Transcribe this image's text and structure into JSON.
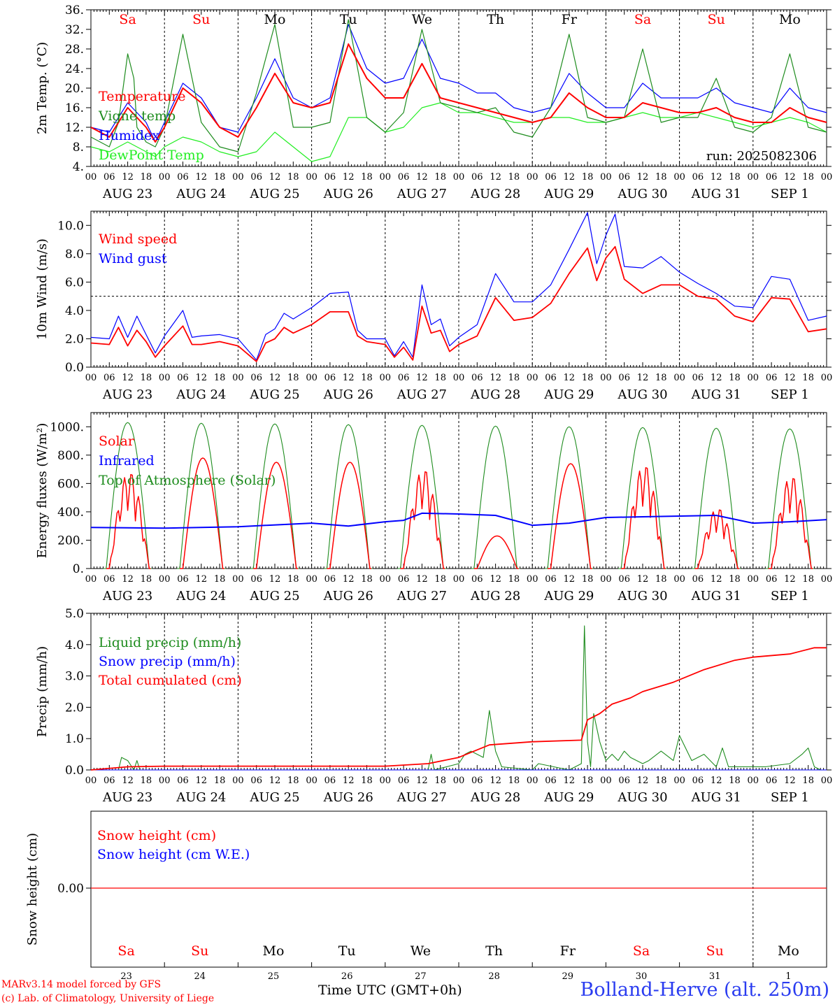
{
  "footer": {
    "credit_line1": "MARv3.14 model forced by GFS",
    "credit_line2": "(c) Lab. of Climatology, University of Liege",
    "time_label": "Time UTC (GMT+0h)",
    "station": "Bolland-Herve (alt. 250m)"
  },
  "axis_common": {
    "hour_ticks": [
      "00",
      "06",
      "12",
      "18"
    ],
    "dates": [
      "AUG 23",
      "AUG 24",
      "AUG 25",
      "AUG 26",
      "AUG 27",
      "AUG 28",
      "AUG 29",
      "AUG 30",
      "AUG 31",
      "SEP  1"
    ],
    "weekdays": [
      "Sa",
      "Su",
      "Mo",
      "Tu",
      "We",
      "Th",
      "Fr",
      "Sa",
      "Su",
      "Mo"
    ],
    "weekday_colors": [
      "#ff0000",
      "#ff0000",
      "#000000",
      "#000000",
      "#000000",
      "#000000",
      "#000000",
      "#ff0000",
      "#ff0000",
      "#000000"
    ],
    "day_numbers": [
      "23",
      "24",
      "25",
      "26",
      "27",
      "28",
      "29",
      "30",
      "31",
      "1"
    ]
  },
  "chart_data": [
    {
      "type": "line",
      "ylabel": "2m Temp. (°C)",
      "ylim": [
        4,
        36
      ],
      "yticks": [
        "4.",
        "8.",
        "12.",
        "16.",
        "20.",
        "24.",
        "28.",
        "32.",
        "36."
      ],
      "annotation": "run: 2025082306",
      "x_unit": "hours since AUG 23 00 UTC",
      "series": [
        {
          "name": "Temperature",
          "color": "#ff0000",
          "x": [
            0,
            6,
            9,
            12,
            15,
            18,
            21,
            24,
            30,
            36,
            42,
            48,
            54,
            60,
            66,
            72,
            78,
            84,
            90,
            96,
            102,
            108,
            114,
            120,
            126,
            132,
            138,
            144,
            150,
            156,
            162,
            168,
            174,
            180,
            186,
            192,
            198,
            204,
            210,
            216,
            222,
            228,
            234,
            240
          ],
          "values": [
            12,
            10,
            13,
            16,
            14,
            12,
            9,
            12,
            20,
            17,
            12,
            10,
            16,
            23,
            17,
            16,
            17,
            29,
            22,
            18,
            18,
            25,
            18,
            17,
            16,
            15,
            14,
            13,
            14,
            19,
            16,
            14,
            14,
            17,
            16,
            15,
            15,
            16,
            14,
            13,
            13,
            16,
            14,
            13
          ]
        },
        {
          "name": "Vigne temp",
          "color": "#1e8c1e",
          "x": [
            0,
            6,
            9,
            12,
            14,
            15,
            18,
            21,
            24,
            30,
            36,
            42,
            48,
            54,
            60,
            66,
            72,
            78,
            84,
            90,
            96,
            102,
            108,
            114,
            120,
            126,
            132,
            138,
            144,
            150,
            156,
            162,
            168,
            174,
            180,
            186,
            192,
            198,
            204,
            210,
            216,
            222,
            228,
            234,
            240
          ],
          "values": [
            10,
            8,
            13,
            27,
            22,
            12,
            9,
            8,
            12,
            31,
            13,
            8,
            7,
            19,
            33,
            12,
            12,
            13,
            34,
            14,
            11,
            15,
            32,
            17,
            16,
            15,
            16,
            11,
            10,
            16,
            31,
            14,
            13,
            14,
            28,
            13,
            14,
            14,
            22,
            12,
            11,
            14,
            27,
            12,
            11
          ]
        },
        {
          "name": "Humidex",
          "color": "#0000ff",
          "x": [
            0,
            6,
            9,
            12,
            15,
            18,
            21,
            24,
            30,
            36,
            42,
            48,
            54,
            60,
            66,
            72,
            78,
            84,
            90,
            96,
            102,
            108,
            114,
            120,
            126,
            132,
            138,
            144,
            150,
            156,
            162,
            168,
            174,
            180,
            186,
            192,
            198,
            204,
            210,
            216,
            222,
            228,
            234,
            240
          ],
          "values": [
            12,
            11,
            14,
            17,
            15,
            13,
            9,
            13,
            21,
            18,
            12,
            11,
            18,
            26,
            18,
            16,
            18,
            33,
            24,
            21,
            22,
            30,
            22,
            21,
            19,
            19,
            16,
            15,
            16,
            23,
            19,
            16,
            16,
            21,
            18,
            18,
            18,
            20,
            17,
            16,
            15,
            20,
            16,
            15
          ]
        },
        {
          "name": "DewPoint Temp",
          "color": "#22ee22",
          "x": [
            0,
            6,
            12,
            18,
            21,
            24,
            30,
            36,
            42,
            48,
            54,
            60,
            66,
            72,
            78,
            84,
            90,
            96,
            102,
            108,
            114,
            120,
            126,
            132,
            138,
            144,
            150,
            156,
            162,
            168,
            174,
            180,
            186,
            192,
            198,
            204,
            210,
            216,
            222,
            228,
            234,
            240
          ],
          "values": [
            8,
            7,
            9,
            7,
            6,
            8,
            10,
            9,
            7,
            6,
            7,
            11,
            8,
            5,
            6,
            14,
            14,
            11,
            12,
            16,
            17,
            15,
            15,
            14,
            13,
            13,
            14,
            14,
            13,
            13,
            14,
            15,
            14,
            14,
            15,
            14,
            13,
            12,
            13,
            14,
            13,
            11
          ]
        }
      ]
    },
    {
      "type": "line",
      "ylabel": "10m Wind (m/s)",
      "ylim": [
        0,
        11
      ],
      "yticks": [
        "0.0",
        "2.0",
        "4.0",
        "6.0",
        "8.0",
        "10.0"
      ],
      "reference_line": 5,
      "x_unit": "hours since AUG 23 00 UTC",
      "series": [
        {
          "name": "Wind speed",
          "color": "#ff0000",
          "x": [
            0,
            6,
            9,
            12,
            15,
            18,
            21,
            24,
            30,
            33,
            36,
            42,
            48,
            54,
            57,
            60,
            63,
            66,
            72,
            78,
            84,
            87,
            90,
            96,
            99,
            102,
            105,
            108,
            111,
            114,
            117,
            120,
            126,
            132,
            138,
            144,
            150,
            156,
            162,
            165,
            168,
            171,
            174,
            180,
            186,
            192,
            198,
            204,
            210,
            216,
            222,
            228,
            234,
            240
          ],
          "values": [
            1.7,
            1.6,
            2.8,
            1.5,
            2.6,
            1.8,
            0.7,
            1.5,
            2.9,
            1.6,
            1.6,
            1.8,
            1.5,
            0.4,
            1.7,
            2.0,
            2.8,
            2.4,
            3.0,
            3.9,
            3.9,
            2.2,
            1.8,
            1.6,
            0.7,
            1.4,
            0.5,
            4.3,
            2.4,
            2.6,
            1.1,
            1.6,
            2.2,
            4.9,
            3.3,
            3.5,
            4.5,
            6.6,
            8.4,
            6.1,
            7.7,
            8.5,
            6.2,
            5.2,
            5.8,
            5.8,
            5.0,
            4.8,
            3.6,
            3.2,
            4.9,
            4.8,
            2.5,
            2.7
          ]
        },
        {
          "name": "Wind gust",
          "color": "#0000ff",
          "x": [
            0,
            6,
            9,
            12,
            15,
            18,
            21,
            24,
            30,
            33,
            36,
            42,
            48,
            54,
            57,
            60,
            63,
            66,
            72,
            78,
            84,
            87,
            90,
            96,
            99,
            102,
            105,
            108,
            111,
            114,
            117,
            120,
            126,
            132,
            138,
            144,
            150,
            156,
            162,
            165,
            168,
            171,
            174,
            180,
            186,
            192,
            198,
            204,
            210,
            216,
            222,
            228,
            234,
            240
          ],
          "values": [
            2.1,
            2.0,
            3.6,
            2.1,
            3.6,
            2.3,
            1.0,
            2.2,
            4.0,
            2.1,
            2.2,
            2.3,
            2.0,
            0.5,
            2.3,
            2.7,
            3.8,
            3.4,
            4.2,
            5.2,
            5.3,
            2.6,
            2.0,
            2.0,
            0.8,
            1.8,
            0.7,
            5.8,
            3.0,
            3.4,
            1.5,
            2.1,
            3.0,
            6.6,
            4.6,
            4.6,
            5.8,
            8.3,
            10.9,
            7.3,
            9.3,
            10.8,
            7.1,
            7.0,
            7.8,
            6.7,
            5.9,
            5.2,
            4.3,
            4.2,
            6.4,
            6.2,
            3.3,
            3.6
          ]
        }
      ]
    },
    {
      "type": "line",
      "ylabel": "Energy fluxes (W/m²)",
      "ylim": [
        0,
        1100
      ],
      "yticks": [
        "0.",
        "200.",
        "400.",
        "600.",
        "800.",
        "1000."
      ],
      "x_unit": "hours since AUG 23 00 UTC",
      "series": [
        {
          "name": "Solar",
          "color": "#ff0000",
          "daily_peaks": [
            690,
            780,
            750,
            750,
            710,
            230,
            740,
            740,
            430,
            660
          ]
        },
        {
          "name": "Infrared",
          "color": "#0000ff",
          "x": [
            0,
            24,
            48,
            72,
            84,
            96,
            102,
            108,
            120,
            132,
            144,
            156,
            168,
            180,
            192,
            204,
            216,
            228,
            240
          ],
          "values": [
            290,
            285,
            295,
            320,
            300,
            330,
            340,
            390,
            385,
            375,
            305,
            320,
            360,
            365,
            370,
            375,
            320,
            330,
            345
          ]
        },
        {
          "name": "Top of Atmosphere (Solar)",
          "color": "#1e8c1e",
          "daily_peaks": [
            1030,
            1025,
            1020,
            1015,
            1010,
            1005,
            1000,
            995,
            990,
            985
          ]
        }
      ]
    },
    {
      "type": "line",
      "ylabel": "Precip (mm/h)",
      "ylim": [
        0,
        5
      ],
      "yticks": [
        "0.0",
        "1.0",
        "2.0",
        "3.0",
        "4.0",
        "5.0"
      ],
      "x_unit": "hours since AUG 23 00 UTC",
      "series": [
        {
          "name": "Liquid precip (mm/h)",
          "color": "#1e8c1e",
          "x": [
            0,
            9,
            10,
            12,
            14,
            15,
            16,
            17,
            24,
            96,
            110,
            111,
            112,
            120,
            122,
            124,
            128,
            130,
            132,
            134,
            144,
            146,
            156,
            158,
            160,
            161,
            162,
            163,
            164,
            166,
            168,
            170,
            172,
            174,
            176,
            180,
            182,
            186,
            190,
            192,
            196,
            200,
            204,
            206,
            208,
            210,
            216,
            220,
            228,
            232,
            234,
            236,
            238,
            240
          ],
          "values": [
            0,
            0,
            0.4,
            0.3,
            0,
            0.3,
            0,
            0,
            0,
            0,
            0,
            0.5,
            0,
            0.2,
            0.5,
            0.6,
            0.4,
            1.9,
            0.6,
            0.1,
            0,
            0.2,
            0,
            0.1,
            0.2,
            4.6,
            0.9,
            0.1,
            1.8,
            0.9,
            0.3,
            0.5,
            0.3,
            0.6,
            0.4,
            0.2,
            0.3,
            0.6,
            0.3,
            1.1,
            0.3,
            0.5,
            0.1,
            0.7,
            0.1,
            0.1,
            0.1,
            0.1,
            0.2,
            0.5,
            0.7,
            0.1,
            0,
            0
          ]
        },
        {
          "name": "Snow precip (mm/h)",
          "color": "#0000ff",
          "x": [
            0,
            240
          ],
          "values": [
            0,
            0
          ]
        },
        {
          "name": "Total cumulated (cm)",
          "color": "#ff0000",
          "x": [
            0,
            12,
            24,
            96,
            110,
            120,
            130,
            144,
            160,
            162,
            166,
            170,
            176,
            180,
            190,
            200,
            210,
            216,
            228,
            236,
            240
          ],
          "values": [
            0,
            0.1,
            0.12,
            0.12,
            0.2,
            0.4,
            0.8,
            0.9,
            0.95,
            1.6,
            1.8,
            2.1,
            2.3,
            2.5,
            2.8,
            3.2,
            3.5,
            3.6,
            3.7,
            3.9,
            3.9
          ]
        }
      ]
    },
    {
      "type": "line",
      "ylabel": "Snow height (cm)",
      "yticks": [
        "0.00"
      ],
      "x_unit": "hours since AUG 23 00 UTC",
      "series": [
        {
          "name": "Snow height (cm)",
          "color": "#ff0000",
          "x": [
            0,
            240
          ],
          "values": [
            0,
            0
          ]
        },
        {
          "name": "Snow height (cm W.E.)",
          "color": "#0000ff",
          "x": [
            0,
            240
          ],
          "values": [
            0,
            0
          ]
        }
      ]
    }
  ]
}
